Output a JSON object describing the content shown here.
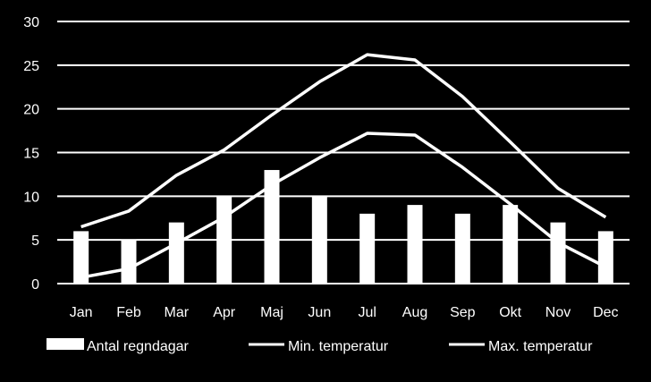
{
  "colors": {
    "background": "#000000",
    "foreground": "#ffffff",
    "grid": "#ffffff"
  },
  "chart_data": {
    "type": "bar",
    "title": "",
    "xlabel": "",
    "ylabel": "",
    "ylim": [
      0,
      30
    ],
    "yticks": [
      "0",
      "5",
      "10",
      "15",
      "20",
      "25",
      "30"
    ],
    "grid": true,
    "legend_position": "bottom",
    "categories": [
      "Jan",
      "Feb",
      "Mar",
      "Apr",
      "Maj",
      "Jun",
      "Jul",
      "Aug",
      "Sep",
      "Okt",
      "Nov",
      "Dec"
    ],
    "series": [
      {
        "name": "Antal regndagar",
        "type": "bar",
        "values": [
          6,
          5,
          7,
          10,
          13,
          10,
          8,
          9,
          8,
          9,
          7,
          6
        ]
      },
      {
        "name": "Min. temperatur",
        "type": "line",
        "values": [
          0.7,
          1.7,
          4.6,
          7.6,
          11.3,
          14.4,
          17.2,
          17.0,
          13.3,
          9.1,
          4.7,
          1.9
        ]
      },
      {
        "name": "Max. temperatur",
        "type": "line",
        "values": [
          6.5,
          8.3,
          12.4,
          15.3,
          19.3,
          23.1,
          26.2,
          25.6,
          21.4,
          16.2,
          10.9,
          7.6
        ]
      }
    ]
  }
}
